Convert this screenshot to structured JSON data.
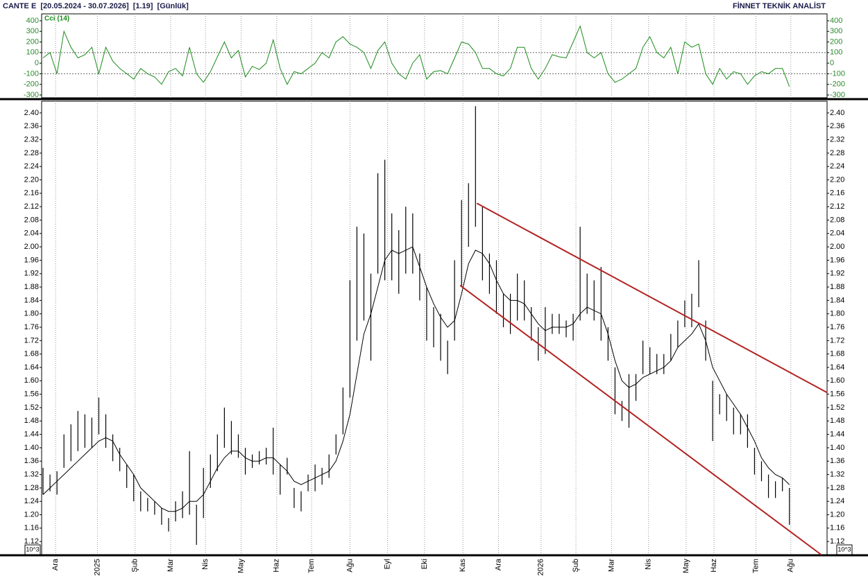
{
  "header": {
    "left": "CANTE E  [20.05.2024 - 30.07.2026]  [1.19]  [Günlük]",
    "right": "FİNNET TEKNİK ANALİST"
  },
  "chart_data": [
    {
      "type": "line",
      "title": "Cci (14)",
      "color": "#1a8a1a",
      "ylim": [
        -326,
        465
      ],
      "yticks": [
        400,
        300,
        200,
        100,
        0,
        -100,
        -200,
        -300
      ],
      "reference_lines": [
        100,
        -100
      ],
      "values": [
        50,
        100,
        -100,
        300,
        150,
        50,
        80,
        150,
        -100,
        150,
        20,
        -50,
        -100,
        -150,
        -50,
        -100,
        -130,
        -200,
        -80,
        -50,
        -120,
        150,
        -100,
        -180,
        -80,
        60,
        200,
        50,
        120,
        -130,
        -30,
        -60,
        0,
        220,
        -50,
        -200,
        -80,
        -100,
        -50,
        0,
        100,
        50,
        200,
        250,
        180,
        150,
        100,
        -50,
        120,
        200,
        0,
        -100,
        -150,
        0,
        80,
        -150,
        -80,
        -70,
        -100,
        50,
        200,
        180,
        100,
        -50,
        -50,
        -100,
        -120,
        -50,
        150,
        150,
        -50,
        -150,
        -50,
        80,
        60,
        50,
        200,
        350,
        100,
        50,
        100,
        -100,
        -180,
        -150,
        -100,
        -50,
        150,
        250,
        100,
        50,
        150,
        -100,
        200,
        150,
        180,
        -100,
        -200,
        -50,
        -150,
        -80,
        -100,
        -200,
        -120,
        -80,
        -100,
        -50,
        -50,
        -220
      ]
    },
    {
      "type": "ohlc",
      "color": "#000000",
      "ma_color": "#000000",
      "scale_label": "10^3",
      "xlim": [
        -0.2,
        112.4
      ],
      "ylim": [
        1.081,
        2.435
      ],
      "xticks": [
        {
          "value": 1.8,
          "label": "Ara"
        },
        {
          "value": 7.8,
          "label": "2025"
        },
        {
          "value": 13.2,
          "label": "Şub"
        },
        {
          "value": 18.3,
          "label": "Mar"
        },
        {
          "value": 23.3,
          "label": "Nis"
        },
        {
          "value": 28.4,
          "label": "May"
        },
        {
          "value": 33.5,
          "label": "Haz"
        },
        {
          "value": 38.5,
          "label": "Tem"
        },
        {
          "value": 44.0,
          "label": "Ağu"
        },
        {
          "value": 49.4,
          "label": "Eyl"
        },
        {
          "value": 54.7,
          "label": "Eki"
        },
        {
          "value": 60.2,
          "label": "Kas"
        },
        {
          "value": 65.3,
          "label": "Ara"
        },
        {
          "value": 71.4,
          "label": "2026"
        },
        {
          "value": 76.4,
          "label": "Şub"
        },
        {
          "value": 81.5,
          "label": "Mar"
        },
        {
          "value": 86.8,
          "label": "Nis"
        },
        {
          "value": 92.2,
          "label": "May"
        },
        {
          "value": 96.2,
          "label": "Haz"
        },
        {
          "value": 102.2,
          "label": "Tem"
        },
        {
          "value": 107.2,
          "label": "Ağu"
        }
      ],
      "yticks": [
        1.12,
        1.16,
        {
          "value": 1.2,
          "label": "1.20"
        },
        1.24,
        1.28,
        1.32,
        1.36,
        {
          "value": 1.4,
          "label": "1.40"
        },
        1.44,
        1.48,
        1.52,
        1.56,
        {
          "value": 1.6,
          "label": "1.60"
        },
        1.64,
        1.68,
        1.72,
        1.76,
        {
          "value": 1.8,
          "label": "1.80"
        },
        1.84,
        1.88,
        1.92,
        1.96,
        {
          "value": 2.0,
          "label": "2.00"
        },
        2.04,
        2.08,
        2.12,
        2.16,
        {
          "value": 2.2,
          "label": "2.20"
        },
        2.24,
        2.28,
        2.32,
        2.36,
        {
          "value": 2.4,
          "label": "2.40"
        }
      ],
      "high": [
        1.34,
        1.32,
        1.33,
        1.44,
        1.47,
        1.51,
        1.5,
        1.49,
        1.55,
        1.5,
        1.44,
        1.4,
        1.35,
        1.32,
        1.27,
        1.25,
        1.24,
        1.22,
        1.19,
        1.24,
        1.27,
        1.39,
        1.23,
        1.34,
        1.38,
        1.44,
        1.52,
        1.48,
        1.44,
        1.4,
        1.38,
        1.39,
        1.4,
        1.46,
        1.35,
        1.37,
        1.28,
        1.27,
        1.32,
        1.35,
        1.34,
        1.38,
        1.44,
        1.58,
        1.9,
        2.06,
        2.04,
        1.92,
        2.22,
        2.26,
        2.1,
        2.05,
        2.12,
        2.1,
        1.98,
        1.88,
        1.82,
        1.8,
        1.72,
        1.96,
        2.14,
        2.19,
        2.42,
        2.12,
        1.98,
        1.96,
        1.86,
        1.86,
        1.92,
        1.9,
        1.82,
        1.76,
        1.82,
        1.8,
        1.8,
        1.78,
        1.8,
        2.06,
        1.92,
        1.9,
        1.94,
        1.76,
        1.64,
        1.54,
        1.62,
        1.62,
        1.72,
        1.7,
        1.68,
        1.68,
        1.74,
        1.78,
        1.84,
        1.86,
        1.96,
        1.78,
        1.6,
        1.56,
        1.56,
        1.52,
        1.5,
        1.5,
        1.4,
        1.36,
        1.32,
        1.3,
        1.31,
        1.28
      ],
      "low": [
        1.26,
        1.27,
        1.26,
        1.34,
        1.36,
        1.39,
        1.4,
        1.4,
        1.44,
        1.4,
        1.36,
        1.33,
        1.28,
        1.24,
        1.21,
        1.21,
        1.2,
        1.17,
        1.15,
        1.18,
        1.19,
        1.2,
        1.11,
        1.19,
        1.28,
        1.33,
        1.4,
        1.38,
        1.37,
        1.32,
        1.34,
        1.35,
        1.35,
        1.32,
        1.26,
        1.32,
        1.22,
        1.21,
        1.27,
        1.27,
        1.29,
        1.31,
        1.38,
        1.44,
        1.55,
        1.72,
        1.78,
        1.66,
        1.92,
        1.9,
        1.9,
        1.86,
        1.92,
        1.92,
        1.84,
        1.72,
        1.7,
        1.66,
        1.62,
        1.72,
        1.88,
        2.0,
        2.06,
        1.9,
        1.86,
        1.8,
        1.76,
        1.74,
        1.78,
        1.78,
        1.72,
        1.66,
        1.68,
        1.74,
        1.74,
        1.73,
        1.72,
        1.78,
        1.8,
        1.78,
        1.72,
        1.66,
        1.5,
        1.48,
        1.46,
        1.54,
        1.62,
        1.62,
        1.62,
        1.62,
        1.66,
        1.7,
        1.76,
        1.76,
        1.82,
        1.66,
        1.42,
        1.5,
        1.48,
        1.44,
        1.44,
        1.4,
        1.32,
        1.3,
        1.25,
        1.25,
        1.27,
        1.17
      ],
      "ma": [
        1.26,
        1.28,
        1.3,
        1.32,
        1.34,
        1.36,
        1.38,
        1.4,
        1.42,
        1.43,
        1.42,
        1.38,
        1.35,
        1.32,
        1.28,
        1.26,
        1.24,
        1.22,
        1.21,
        1.21,
        1.22,
        1.24,
        1.24,
        1.26,
        1.3,
        1.34,
        1.37,
        1.39,
        1.39,
        1.37,
        1.36,
        1.36,
        1.37,
        1.37,
        1.35,
        1.33,
        1.3,
        1.29,
        1.3,
        1.31,
        1.32,
        1.33,
        1.36,
        1.42,
        1.5,
        1.62,
        1.74,
        1.8,
        1.88,
        1.96,
        1.99,
        1.98,
        1.99,
        2.0,
        1.94,
        1.88,
        1.83,
        1.79,
        1.76,
        1.78,
        1.86,
        1.95,
        1.99,
        1.98,
        1.95,
        1.9,
        1.86,
        1.84,
        1.84,
        1.83,
        1.8,
        1.77,
        1.75,
        1.76,
        1.76,
        1.76,
        1.77,
        1.8,
        1.82,
        1.81,
        1.8,
        1.74,
        1.66,
        1.6,
        1.58,
        1.59,
        1.61,
        1.62,
        1.63,
        1.64,
        1.66,
        1.7,
        1.72,
        1.74,
        1.77,
        1.72,
        1.64,
        1.6,
        1.56,
        1.53,
        1.5,
        1.46,
        1.42,
        1.37,
        1.34,
        1.32,
        1.31,
        1.29
      ],
      "trendlines": [
        {
          "color": "#b22222",
          "x": [
            62.2,
            112.4
          ],
          "y": [
            2.13,
            1.565
          ]
        },
        {
          "color": "#b22222",
          "x": [
            59.8,
            111.6
          ],
          "y": [
            1.885,
            1.08
          ]
        }
      ]
    }
  ]
}
